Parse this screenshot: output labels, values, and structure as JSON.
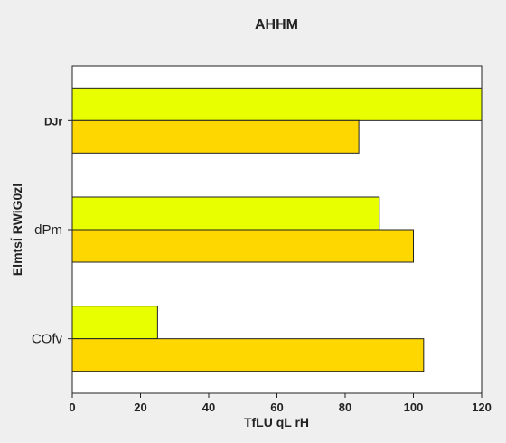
{
  "chart_data": {
    "type": "bar",
    "orientation": "horizontal",
    "title": "AHHM",
    "xlabel": "TfLU qL rH",
    "ylabel": "ElmtsÍ RWiG0zl",
    "categories": [
      "DJr",
      "dPm",
      "COfv"
    ],
    "category_label_bold": [
      true,
      false,
      false
    ],
    "xlim": [
      0,
      120
    ],
    "xticks": [
      0,
      20,
      40,
      60,
      80,
      100,
      120
    ],
    "grid": false,
    "legend": "none",
    "series": [
      {
        "color": "#e8ff00",
        "values": [
          120,
          90,
          25
        ]
      },
      {
        "color": "#ffd700",
        "values": [
          84,
          100,
          103
        ]
      }
    ]
  }
}
